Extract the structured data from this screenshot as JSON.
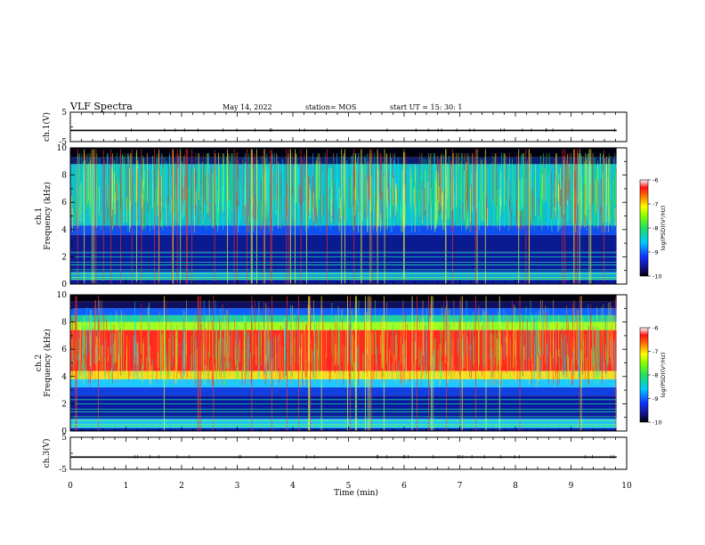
{
  "header": {
    "title": "VLF Spectra",
    "date": "May 14, 2022",
    "station": "station= MOS",
    "start": "start  UT  =   15: 30: 1"
  },
  "chart_data": [
    {
      "type": "line",
      "ylabel": "ch.1(V)",
      "ylim": [
        -5,
        5
      ],
      "yticks": [
        5,
        -5
      ],
      "series": [
        {
          "values": [
            -1.2
          ]
        }
      ]
    },
    {
      "type": "heatmap",
      "ylabel_line1": "ch.1",
      "ylabel_line2": "Frequency  (kHz)",
      "ylim": [
        0,
        10
      ],
      "yticks": [
        0,
        2,
        4,
        6,
        8,
        10
      ],
      "colorbar": {
        "label": "log(PSD)(V²/Hz)",
        "ticks": [
          -6,
          -7,
          -8,
          -9,
          -10
        ],
        "range": [
          -10,
          -6
        ]
      }
    },
    {
      "type": "heatmap",
      "ylabel_line1": "ch.2",
      "ylabel_line2": "Frequency  (kHz)",
      "ylim": [
        0,
        10
      ],
      "yticks": [
        0,
        2,
        4,
        6,
        8,
        10
      ],
      "colorbar": {
        "label": "log(PSD)(V²/Hz)",
        "ticks": [
          -6,
          -7,
          -8,
          -9,
          -10
        ],
        "range": [
          -10,
          -6
        ]
      }
    },
    {
      "type": "line",
      "ylabel": "ch.3(V)",
      "ylim": [
        -5,
        5
      ],
      "yticks": [
        5,
        -5
      ],
      "series": [
        {
          "values": [
            -1.2
          ]
        }
      ]
    }
  ],
  "x_axis": {
    "label": "Time  (min)",
    "ticks": [
      0,
      1,
      2,
      3,
      4,
      5,
      6,
      7,
      8,
      9,
      10
    ],
    "range": [
      0,
      10
    ],
    "data_end": 9.82
  },
  "colors": {
    "low": "#000080",
    "mid": "#00d000",
    "high": "#ff2020",
    "ink": "#000000"
  }
}
